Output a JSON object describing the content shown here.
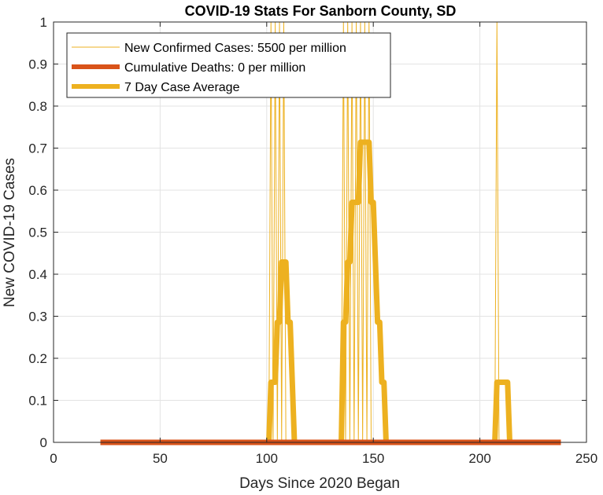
{
  "chart_data": {
    "type": "line",
    "title": "COVID-19 Stats For Sanborn County, SD",
    "xlabel": "Days Since 2020 Began",
    "ylabel": "New COVID-19 Cases",
    "xlim": [
      0,
      250
    ],
    "ylim": [
      0,
      1
    ],
    "xticks": [
      0,
      50,
      100,
      150,
      200,
      250
    ],
    "yticks": [
      0,
      0.1,
      0.2,
      0.3,
      0.4,
      0.5,
      0.6,
      0.7,
      0.8,
      0.9,
      1
    ],
    "grid": true,
    "legend_position": "top-left",
    "colors": {
      "new_cases": "#EDB120",
      "deaths": "#D95319",
      "avg": "#EDB120",
      "grid": "#e3e3e3",
      "axis": "#262626"
    },
    "series": [
      {
        "name": "New Confirmed Cases: 5500 per million",
        "style": "thin",
        "x": [
          22,
          101,
          102,
          103,
          104,
          105,
          106,
          107,
          108,
          109,
          135,
          136,
          137,
          138,
          139,
          140,
          141,
          142,
          143,
          144,
          145,
          146,
          147,
          148,
          149,
          150,
          207,
          208,
          209,
          238
        ],
        "y": [
          0,
          0,
          1,
          0,
          1,
          0,
          1,
          0,
          1,
          0,
          0,
          1,
          0,
          1,
          0,
          1,
          0,
          1,
          0,
          1,
          0,
          1,
          0,
          1,
          0,
          0,
          0,
          1,
          0,
          0
        ]
      },
      {
        "name": "Cumulative Deaths: 0 per million",
        "style": "thick",
        "x": [
          22,
          238
        ],
        "y": [
          0,
          0
        ]
      },
      {
        "name": "7 Day Case Average",
        "style": "thick",
        "x": [
          22,
          101,
          102,
          104,
          105,
          106,
          107,
          108,
          109,
          110,
          111,
          112,
          113,
          135,
          136,
          137,
          138,
          139,
          140,
          141,
          142,
          143,
          144,
          145,
          146,
          147,
          148,
          149,
          150,
          151,
          152,
          153,
          154,
          155,
          156,
          207,
          208,
          213,
          214,
          238
        ],
        "y": [
          0,
          0,
          0.143,
          0.143,
          0.286,
          0.286,
          0.429,
          0.429,
          0.429,
          0.286,
          0.286,
          0.143,
          0,
          0,
          0.286,
          0.286,
          0.429,
          0.429,
          0.571,
          0.571,
          0.571,
          0.571,
          0.714,
          0.714,
          0.714,
          0.714,
          0.714,
          0.571,
          0.571,
          0.429,
          0.286,
          0.286,
          0.143,
          0.143,
          0,
          0,
          0.143,
          0.143,
          0,
          0
        ]
      }
    ]
  }
}
